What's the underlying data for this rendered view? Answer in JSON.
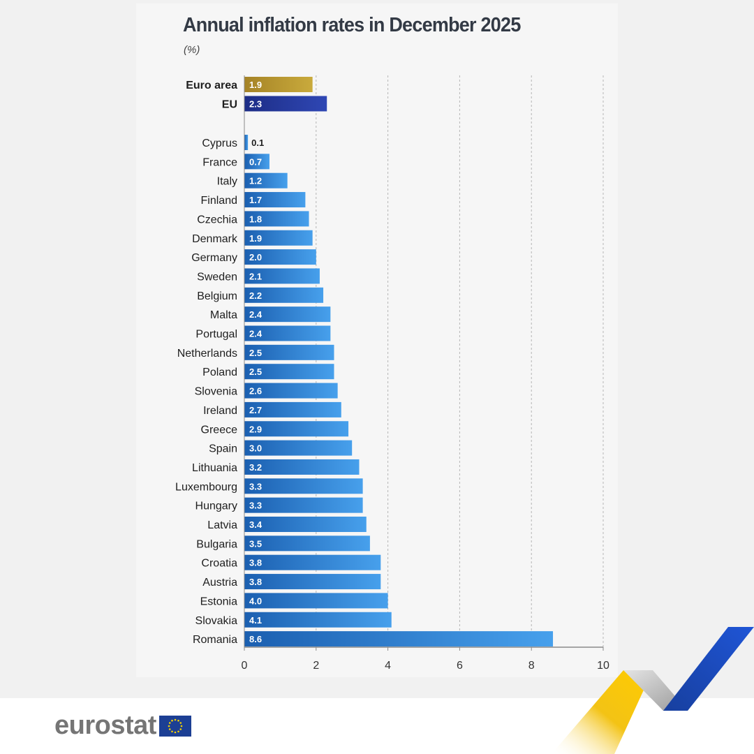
{
  "header": {
    "title": "Annual inflation rates in December 2025",
    "unit": "(%)"
  },
  "logo": {
    "text": "eurostat"
  },
  "colors": {
    "euro_area": "#b99a2e",
    "eu": "#23389a",
    "country_dark": "#1b5fb0",
    "country_light": "#47a0ec",
    "background": "#f1f1f1"
  },
  "chart_data": {
    "type": "bar",
    "orientation": "horizontal",
    "title": "Annual inflation rates in December 2025",
    "unit": "(%)",
    "xlabel": "",
    "ylabel": "",
    "xlim": [
      0,
      10
    ],
    "xticks": [
      0,
      2,
      4,
      6,
      8,
      10
    ],
    "grid": true,
    "aggregates": [
      {
        "label": "Euro area",
        "value": 1.9,
        "value_text": "1.9"
      },
      {
        "label": "EU",
        "value": 2.3,
        "value_text": "2.3"
      }
    ],
    "countries": [
      {
        "label": "Cyprus",
        "value": 0.1,
        "value_text": "0.1"
      },
      {
        "label": "France",
        "value": 0.7,
        "value_text": "0.7"
      },
      {
        "label": "Italy",
        "value": 1.2,
        "value_text": "1.2"
      },
      {
        "label": "Finland",
        "value": 1.7,
        "value_text": "1.7"
      },
      {
        "label": "Czechia",
        "value": 1.8,
        "value_text": "1.8"
      },
      {
        "label": "Denmark",
        "value": 1.9,
        "value_text": "1.9"
      },
      {
        "label": "Germany",
        "value": 2.0,
        "value_text": "2.0"
      },
      {
        "label": "Sweden",
        "value": 2.1,
        "value_text": "2.1"
      },
      {
        "label": "Belgium",
        "value": 2.2,
        "value_text": "2.2"
      },
      {
        "label": "Malta",
        "value": 2.4,
        "value_text": "2.4"
      },
      {
        "label": "Portugal",
        "value": 2.4,
        "value_text": "2.4"
      },
      {
        "label": "Netherlands",
        "value": 2.5,
        "value_text": "2.5"
      },
      {
        "label": "Poland",
        "value": 2.5,
        "value_text": "2.5"
      },
      {
        "label": "Slovenia",
        "value": 2.6,
        "value_text": "2.6"
      },
      {
        "label": "Ireland",
        "value": 2.7,
        "value_text": "2.7"
      },
      {
        "label": "Greece",
        "value": 2.9,
        "value_text": "2.9"
      },
      {
        "label": "Spain",
        "value": 3.0,
        "value_text": "3.0"
      },
      {
        "label": "Lithuania",
        "value": 3.2,
        "value_text": "3.2"
      },
      {
        "label": "Luxembourg",
        "value": 3.3,
        "value_text": "3.3"
      },
      {
        "label": "Hungary",
        "value": 3.3,
        "value_text": "3.3"
      },
      {
        "label": "Latvia",
        "value": 3.4,
        "value_text": "3.4"
      },
      {
        "label": "Bulgaria",
        "value": 3.5,
        "value_text": "3.5"
      },
      {
        "label": "Croatia",
        "value": 3.8,
        "value_text": "3.8"
      },
      {
        "label": "Austria",
        "value": 3.8,
        "value_text": "3.8"
      },
      {
        "label": "Estonia",
        "value": 4.0,
        "value_text": "4.0"
      },
      {
        "label": "Slovakia",
        "value": 4.1,
        "value_text": "4.1"
      },
      {
        "label": "Romania",
        "value": 8.6,
        "value_text": "8.6"
      }
    ]
  }
}
